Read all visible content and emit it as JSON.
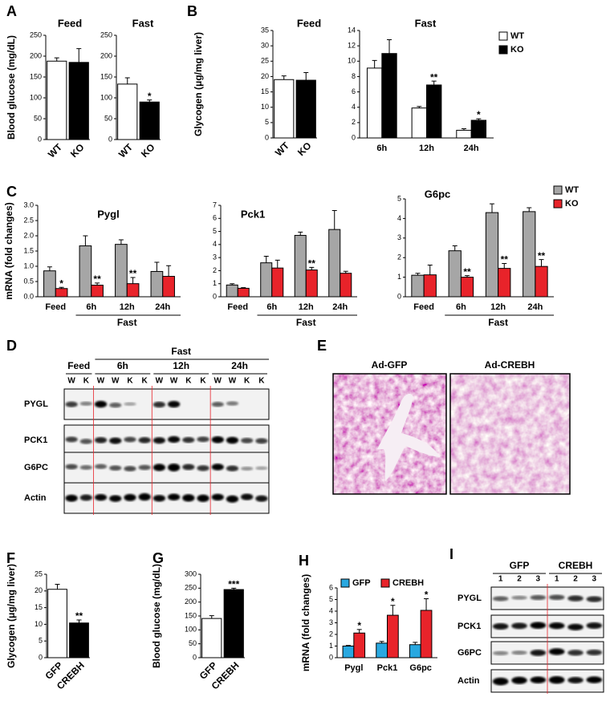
{
  "panels": [
    "A",
    "B",
    "C",
    "D",
    "E",
    "F",
    "G",
    "H",
    "I"
  ],
  "chart_data": [
    {
      "type": "bar",
      "title": "Feed",
      "ylabel": "Blood glucose (mg/dL)",
      "categories": [
        "WT",
        "KO"
      ],
      "values": [
        188,
        185
      ],
      "errors": [
        8,
        33
      ],
      "colors": [
        "#ffffff",
        "#000000"
      ],
      "ylim": [
        0,
        250
      ],
      "yticks": [
        0,
        50,
        100,
        150,
        200,
        250
      ]
    },
    {
      "type": "bar",
      "title": "Fast",
      "categories": [
        "WT",
        "KO"
      ],
      "values": [
        133,
        90
      ],
      "errors": [
        15,
        5
      ],
      "colors": [
        "#ffffff",
        "#000000"
      ],
      "significance": [
        null,
        "*"
      ],
      "ylim": [
        0,
        250
      ],
      "yticks": [
        0,
        50,
        100,
        150,
        200,
        250
      ]
    },
    {
      "type": "bar",
      "title": "Feed",
      "ylabel": "Glycogen (μg/mg liver)",
      "categories": [
        "WT",
        "KO"
      ],
      "values": [
        19,
        18.8
      ],
      "errors": [
        1.2,
        2.5
      ],
      "colors": [
        "#ffffff",
        "#000000"
      ],
      "ylim": [
        0,
        35
      ],
      "yticks": [
        0,
        5,
        10,
        15,
        20,
        25,
        30,
        35
      ]
    },
    {
      "type": "bar",
      "title": "Fast",
      "categories": [
        "6h",
        "12h",
        "24h"
      ],
      "legend": "upper right",
      "series": [
        {
          "name": "WT",
          "color": "#ffffff",
          "values": [
            9.1,
            3.9,
            1.0
          ],
          "errors": [
            1.0,
            0.2,
            0.2
          ]
        },
        {
          "name": "KO",
          "color": "#000000",
          "values": [
            11.0,
            6.9,
            2.3
          ],
          "errors": [
            1.8,
            0.5,
            0.2
          ],
          "significance": [
            null,
            "**",
            "*"
          ]
        }
      ],
      "ylim": [
        0,
        14
      ],
      "yticks": [
        0,
        2,
        4,
        6,
        8,
        10,
        12,
        14
      ]
    },
    {
      "type": "bar",
      "title": "Pygl",
      "ylabel": "mRNA (fold changes)",
      "categories": [
        "Feed",
        "6h",
        "12h",
        "24h"
      ],
      "group_label": "Fast",
      "series": [
        {
          "name": "WT",
          "color": "#a6a6a6",
          "values": [
            0.85,
            1.67,
            1.72,
            0.83
          ],
          "errors": [
            0.13,
            0.33,
            0.15,
            0.3
          ]
        },
        {
          "name": "KO",
          "color": "#e8232a",
          "values": [
            0.27,
            0.38,
            0.43,
            0.67
          ],
          "errors": [
            0.04,
            0.07,
            0.2,
            0.35
          ],
          "significance": [
            "*",
            "**",
            "**",
            null
          ]
        }
      ],
      "ylim": [
        0,
        3
      ],
      "yticks": [
        {
          "value": 0,
          "label": "0.0"
        },
        0.5,
        {
          "value": 1,
          "label": "1.0"
        },
        1.5,
        {
          "value": 2,
          "label": "2.0"
        },
        2.5,
        {
          "value": 3,
          "label": "3.0"
        }
      ]
    },
    {
      "type": "bar",
      "title": "Pck1",
      "categories": [
        "Feed",
        "6h",
        "12h",
        "24h"
      ],
      "group_label": "Fast",
      "series": [
        {
          "name": "WT",
          "color": "#a6a6a6",
          "values": [
            0.9,
            2.6,
            4.7,
            5.15
          ],
          "errors": [
            0.1,
            0.5,
            0.25,
            1.45
          ]
        },
        {
          "name": "KO",
          "color": "#e8232a",
          "values": [
            0.65,
            2.2,
            2.05,
            1.8
          ],
          "errors": [
            0.05,
            0.6,
            0.2,
            0.15
          ],
          "significance": [
            null,
            null,
            "**",
            null
          ]
        }
      ],
      "ylim": [
        0,
        7
      ],
      "yticks": [
        0,
        1,
        2,
        3,
        4,
        5,
        6,
        7
      ]
    },
    {
      "type": "bar",
      "title": "G6pc",
      "categories": [
        "Feed",
        "6h",
        "12h",
        "24h"
      ],
      "group_label": "Fast",
      "legend": "upper right",
      "series": [
        {
          "name": "WT",
          "color": "#a6a6a6",
          "values": [
            1.1,
            2.35,
            4.3,
            4.35
          ],
          "errors": [
            0.1,
            0.25,
            0.45,
            0.2
          ]
        },
        {
          "name": "KO",
          "color": "#e8232a",
          "values": [
            1.12,
            1.0,
            1.45,
            1.55
          ],
          "errors": [
            0.5,
            0.08,
            0.25,
            0.35
          ],
          "significance": [
            null,
            "**",
            "**",
            "**"
          ]
        }
      ],
      "ylim": [
        0,
        5
      ],
      "yticks": [
        0,
        1,
        2,
        3,
        4,
        5
      ]
    },
    {
      "type": "bar",
      "ylabel": "Glycogen (μg/mg liver)",
      "categories": [
        "GFP",
        "CREBH"
      ],
      "values": [
        20.5,
        10.4
      ],
      "errors": [
        1.5,
        0.9
      ],
      "colors": [
        "#ffffff",
        "#000000"
      ],
      "significance": [
        null,
        "**"
      ],
      "ylim": [
        0,
        25
      ],
      "yticks": [
        0,
        5,
        10,
        15,
        20,
        25
      ]
    },
    {
      "type": "bar",
      "ylabel": "Blood glucose (mg/dL)",
      "categories": [
        "GFP",
        "CREBH"
      ],
      "values": [
        141,
        245
      ],
      "errors": [
        10,
        5
      ],
      "colors": [
        "#ffffff",
        "#000000"
      ],
      "significance": [
        null,
        "***"
      ],
      "ylim": [
        0,
        300
      ],
      "yticks": [
        0,
        50,
        100,
        150,
        200,
        250,
        300
      ]
    },
    {
      "type": "bar",
      "ylabel": "mRNA (fold changes)",
      "categories": [
        "Pygl",
        "Pck1",
        "G6pc"
      ],
      "legend": "upper left",
      "series": [
        {
          "name": "GFP",
          "color": "#29a8e0",
          "values": [
            1.0,
            1.25,
            1.12
          ],
          "errors": [
            0.05,
            0.15,
            0.2
          ]
        },
        {
          "name": "CREBH",
          "color": "#e8232a",
          "values": [
            2.12,
            3.65,
            4.07
          ],
          "errors": [
            0.3,
            0.85,
            1.0
          ],
          "significance": [
            "*",
            "*",
            "*"
          ]
        }
      ],
      "ylim": [
        0,
        6
      ],
      "yticks": [
        0,
        1,
        2,
        3,
        4,
        5,
        6
      ]
    }
  ],
  "blot_d": {
    "group": "Fast",
    "timepoints": [
      "Feed",
      "6h",
      "12h",
      "24h"
    ],
    "lanes": [
      "W",
      "K",
      "W",
      "W",
      "K",
      "K",
      "W",
      "W",
      "K",
      "K",
      "W",
      "W",
      "K",
      "K"
    ],
    "rows": [
      "PYGL",
      "PCK1",
      "G6PC",
      "Actin"
    ]
  },
  "histology_e": {
    "labels": [
      "Ad-GFP",
      "Ad-CREBH"
    ]
  },
  "blot_i": {
    "groups": [
      "GFP",
      "CREBH"
    ],
    "lanes": [
      "1",
      "2",
      "3",
      "1",
      "2",
      "3"
    ],
    "rows": [
      "PYGL",
      "PCK1",
      "G6PC",
      "Actin"
    ]
  }
}
